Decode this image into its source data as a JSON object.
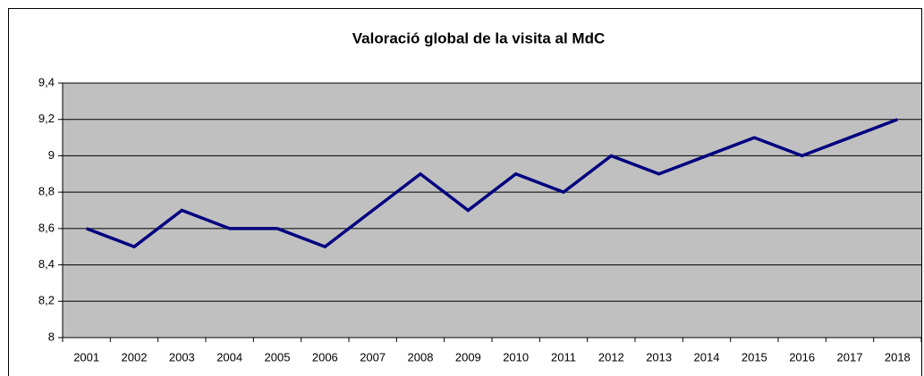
{
  "chart_data": {
    "type": "line",
    "title": "Valoració global de la visita al MdC",
    "categories": [
      "2001",
      "2002",
      "2003",
      "2004",
      "2005",
      "2006",
      "2007",
      "2008",
      "2009",
      "2010",
      "2011",
      "2012",
      "2013",
      "2014",
      "2015",
      "2016",
      "2017",
      "2018"
    ],
    "series": [
      {
        "name": "Valoració",
        "color": "#000080",
        "values": [
          8.6,
          8.5,
          8.7,
          8.6,
          8.6,
          8.5,
          8.7,
          8.9,
          8.7,
          8.9,
          8.8,
          9.0,
          8.9,
          9.0,
          9.1,
          9.0,
          9.1,
          9.2
        ]
      }
    ],
    "ylim": [
      8,
      9.4
    ],
    "yticks": [
      8,
      {
        "value": 8.2,
        "label": "8,2"
      },
      {
        "value": 8.4,
        "label": "8,4"
      },
      {
        "value": 8.6,
        "label": "8,6"
      },
      {
        "value": 8.8,
        "label": "8,8"
      },
      9,
      {
        "value": 9.2,
        "label": "9,2"
      },
      {
        "value": 9.4,
        "label": "9,4"
      }
    ],
    "grid": true,
    "plot_background": "#c0c0c0"
  }
}
